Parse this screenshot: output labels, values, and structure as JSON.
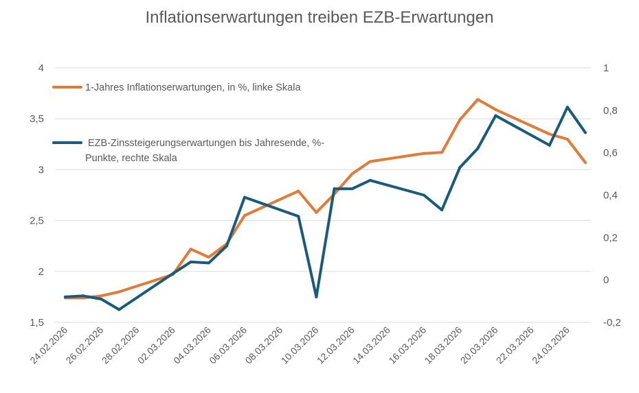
{
  "chart_data": {
    "type": "line",
    "title": "Inflationserwartungen treiben EZB-Erwartungen",
    "x_tick_labels": [
      "24.02.2026",
      "26.02.2026",
      "28.02.2026",
      "02.03.2026",
      "04.03.2026",
      "06.03.2026",
      "08.03.2026",
      "10.03.2026",
      "12.03.2026",
      "14.03.2026",
      "16.03.2026",
      "18.03.2026",
      "20.03.2026",
      "22.03.2026",
      "24.03.2026"
    ],
    "y_left": {
      "min": 1.5,
      "max": 4,
      "ticks": [
        "1,5",
        "2",
        "2,5",
        "3",
        "3,5",
        "4"
      ],
      "tick_values": [
        1.5,
        2,
        2.5,
        3,
        3.5,
        4
      ]
    },
    "y_right": {
      "min": -0.2,
      "max": 1,
      "ticks": [
        "-0,2",
        "0",
        "0,2",
        "0,4",
        "0,6",
        "0,8",
        "1"
      ],
      "tick_values": [
        -0.2,
        0,
        0.2,
        0.4,
        0.6,
        0.8,
        1
      ]
    },
    "grid": true,
    "legend_position": "top-left",
    "series": [
      {
        "name": "1-Jahres Inflationserwartungen, in %, linke Skala",
        "axis": "left",
        "color": "#e07b39",
        "x": [
          "24.02.2026",
          "25.02.2026",
          "26.02.2026",
          "27.02.2026",
          "02.03.2026",
          "03.03.2026",
          "04.03.2026",
          "05.03.2026",
          "06.03.2026",
          "09.03.2026",
          "10.03.2026",
          "11.03.2026",
          "12.03.2026",
          "13.03.2026",
          "16.03.2026",
          "17.03.2026",
          "18.03.2026",
          "19.03.2026",
          "20.03.2026",
          "23.03.2026",
          "24.03.2026",
          "25.03.2026"
        ],
        "values": [
          1.74,
          1.74,
          1.76,
          1.8,
          1.97,
          2.22,
          2.14,
          2.27,
          2.55,
          2.79,
          2.58,
          2.76,
          2.96,
          3.08,
          3.16,
          3.17,
          3.49,
          3.69,
          3.59,
          3.35,
          3.3,
          3.07
        ]
      },
      {
        "name": "EZB-Zinssteigerungserwartungen bis Jahresende, %-Punkte, rechte Skala",
        "axis": "right",
        "color": "#1a5a7a",
        "x": [
          "24.02.2026",
          "25.02.2026",
          "26.02.2026",
          "27.02.2026",
          "02.03.2026",
          "03.03.2026",
          "04.03.2026",
          "05.03.2026",
          "06.03.2026",
          "09.03.2026",
          "10.03.2026",
          "11.03.2026",
          "12.03.2026",
          "13.03.2026",
          "16.03.2026",
          "17.03.2026",
          "18.03.2026",
          "19.03.2026",
          "20.03.2026",
          "23.03.2026",
          "24.03.2026",
          "25.03.2026"
        ],
        "values": [
          -0.08,
          -0.075,
          -0.09,
          -0.14,
          0.03,
          0.085,
          0.08,
          0.16,
          0.39,
          0.3,
          -0.08,
          0.43,
          0.43,
          0.47,
          0.4,
          0.33,
          0.53,
          0.62,
          0.775,
          0.635,
          0.815,
          0.695
        ]
      }
    ]
  }
}
